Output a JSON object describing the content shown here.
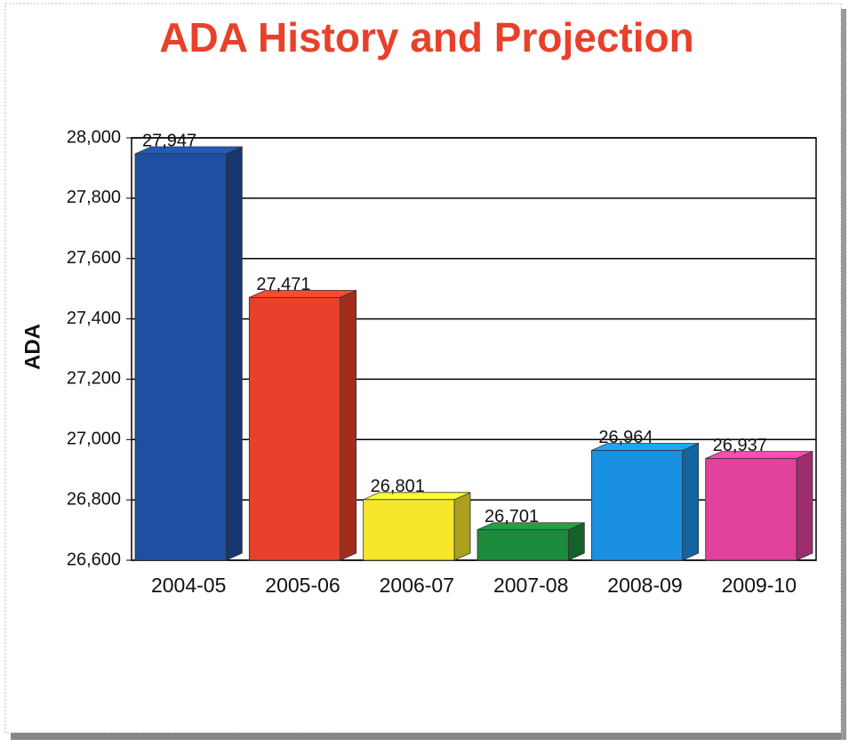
{
  "chart_data": {
    "type": "bar",
    "title": "ADA History and Projection",
    "y_label": "ADA",
    "categories": [
      "2004-05",
      "2005-06",
      "2006-07",
      "2007-08",
      "2008-09",
      "2009-10"
    ],
    "values": [
      27947,
      27471,
      26801,
      26701,
      26964,
      26937
    ],
    "value_labels": [
      "27,947",
      "27,471",
      "26,801",
      "26,701",
      "26,964",
      "26,937"
    ],
    "colors": [
      "#1f4fa0",
      "#e8402a",
      "#f6e62c",
      "#1c8c3c",
      "#1a90e2",
      "#e0429c"
    ],
    "ylim": [
      26600,
      28000
    ],
    "yticks": [
      {
        "value": 26600,
        "label": "26,600"
      },
      {
        "value": 26800,
        "label": "26,800"
      },
      {
        "value": 27000,
        "label": "27,000"
      },
      {
        "value": 27200,
        "label": "27,200"
      },
      {
        "value": 27400,
        "label": "27,400"
      },
      {
        "value": 27600,
        "label": "27,600"
      },
      {
        "value": 27800,
        "label": "27,800"
      },
      {
        "value": 28000,
        "label": "28,000"
      }
    ],
    "grid": true
  }
}
